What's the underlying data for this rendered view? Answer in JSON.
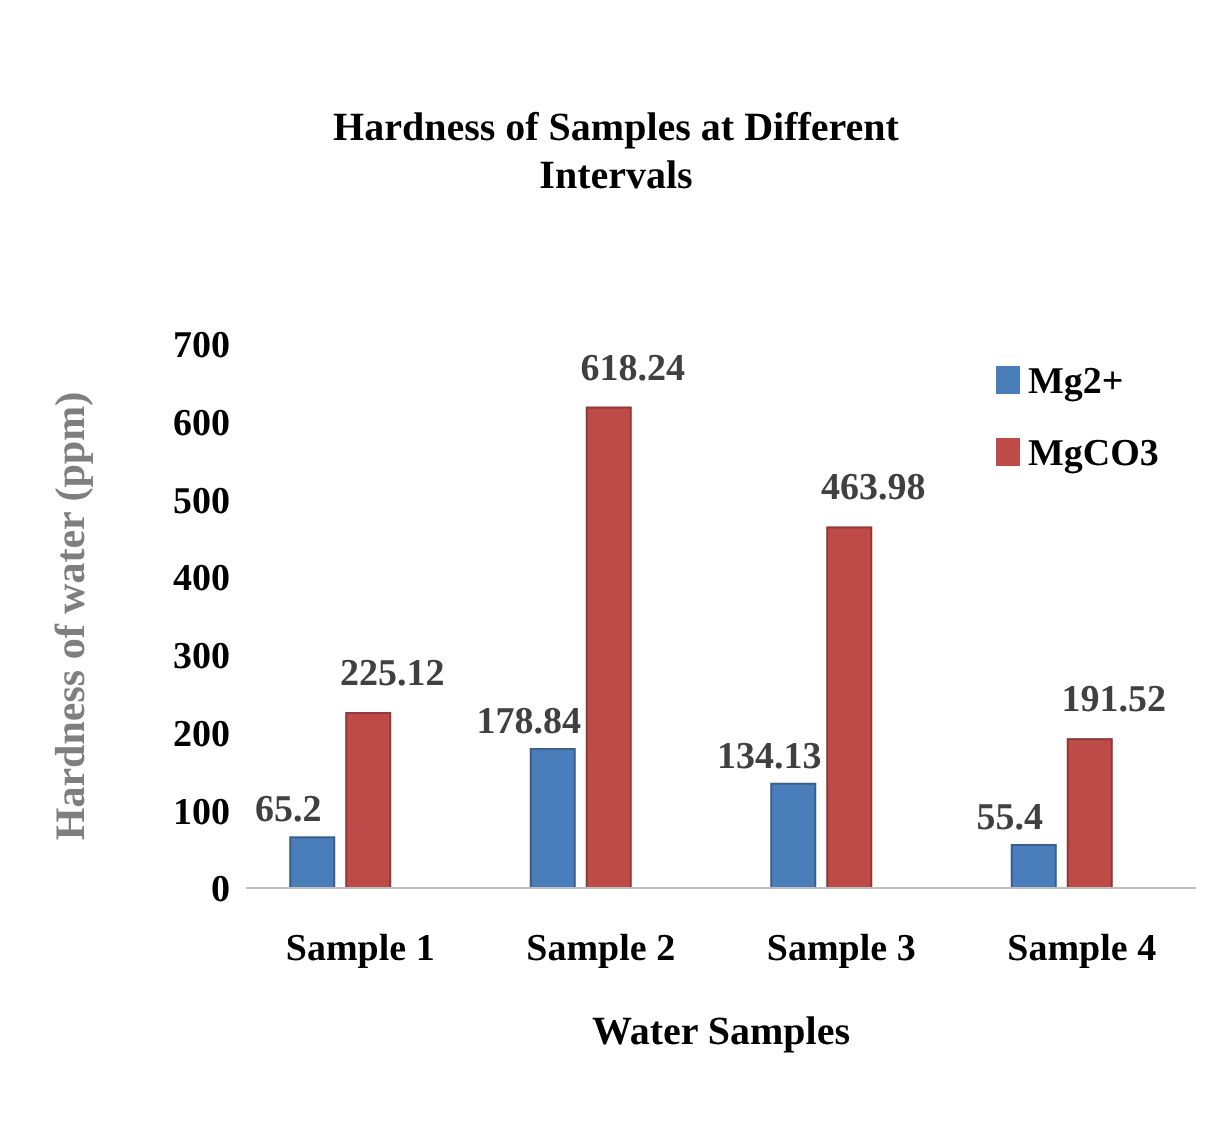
{
  "chart_data": {
    "type": "bar",
    "title": "Hardness of Samples at Different Intervals",
    "xlabel": "Water Samples",
    "ylabel": "Hardness of water (ppm)",
    "categories": [
      "Sample 1",
      "Sample 2",
      "Sample 3",
      "Sample 4"
    ],
    "series": [
      {
        "name": "Mg2+",
        "color": "#4a7ebb",
        "values": [
          65.2,
          178.84,
          134.13,
          55.4
        ]
      },
      {
        "name": "MgCO3",
        "color": "#be4b48",
        "values": [
          225.12,
          618.24,
          463.98,
          191.52
        ]
      }
    ],
    "ylim": [
      0,
      700
    ],
    "yticks": [
      0,
      100,
      200,
      300,
      400,
      500,
      600,
      700
    ],
    "data_labels": true,
    "legend": "top right",
    "grid": false
  }
}
